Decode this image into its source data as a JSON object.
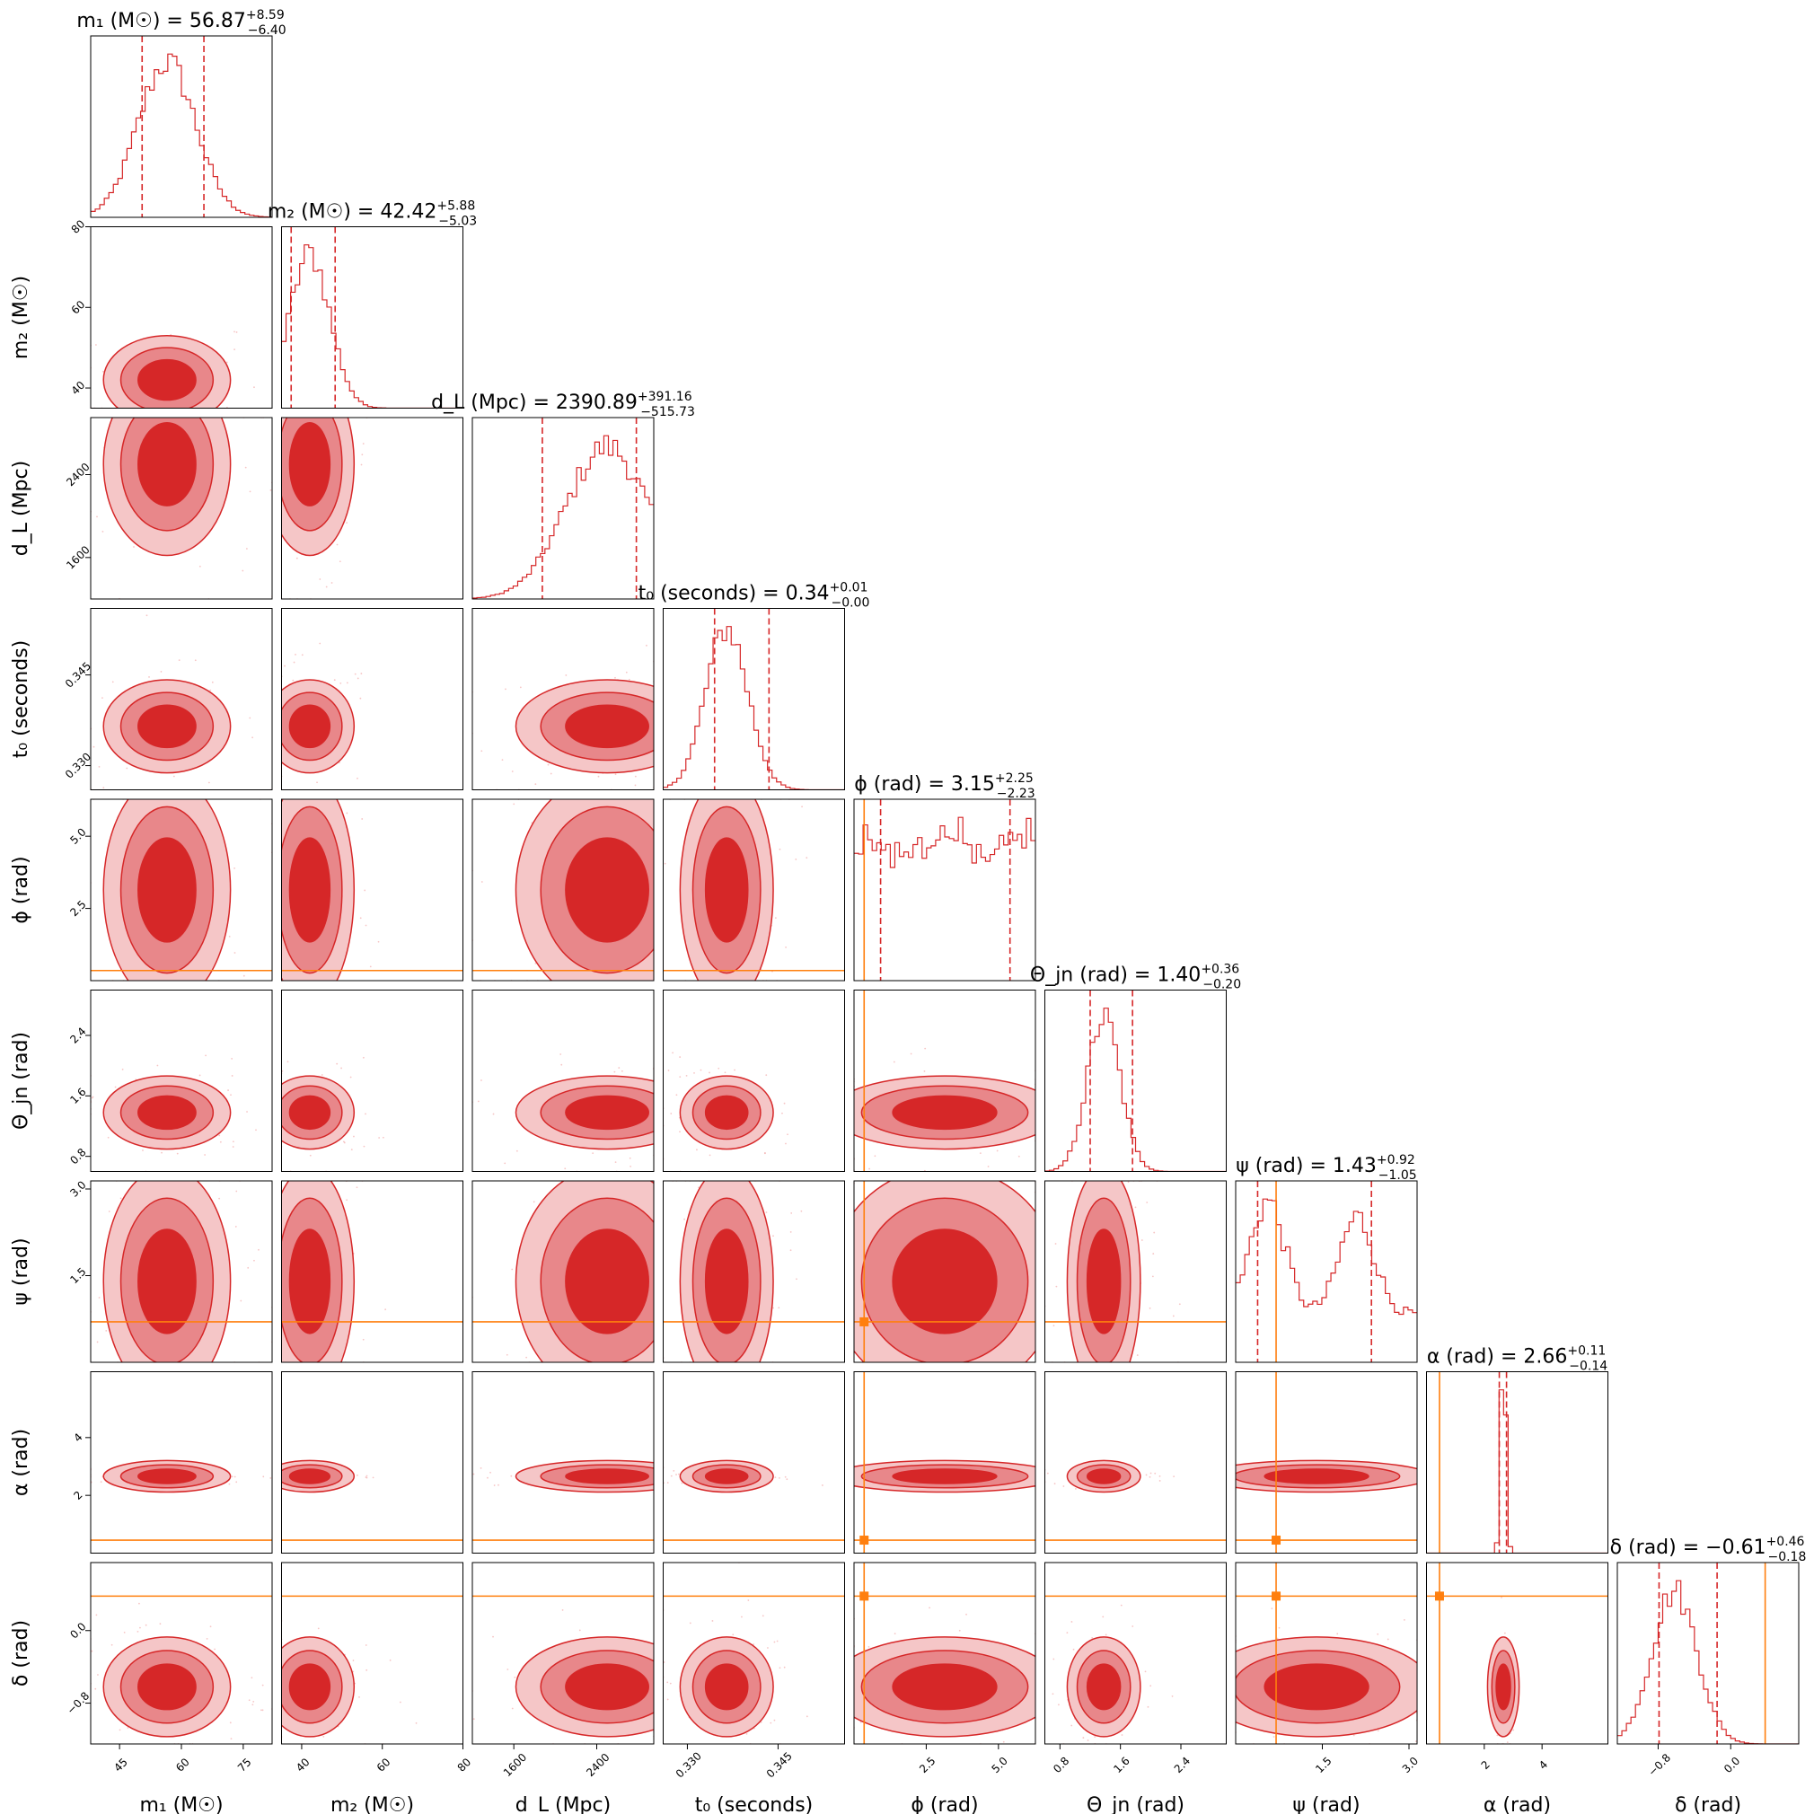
{
  "chart_data": {
    "type": "corner",
    "colors": {
      "posterior": "#d62728",
      "contour_inner": "#d62728",
      "contour_mid": "#e8878a",
      "contour_outer": "#f5c6c7",
      "truth": "#ff7f0e",
      "axes": "#000000",
      "scatter": "#f0a0a0"
    },
    "parameters": [
      {
        "key": "m1",
        "label": "m₁ (M☉)",
        "range": [
          38,
          82
        ],
        "ticks": [
          {
            "v": 45,
            "t": "45"
          },
          {
            "v": 60,
            "t": "60"
          },
          {
            "v": 75,
            "t": "75"
          }
        ],
        "title_main": "m₁ (M☉) = 56.87",
        "title_sup": "+8.59",
        "title_sub": "−6.40",
        "median": 56.87,
        "q_low": 50.47,
        "q_high": 65.46,
        "truth": null,
        "mu": 56.5,
        "sig": 7.0
      },
      {
        "key": "m2",
        "label": "m₂ (M☉)",
        "range": [
          35,
          80
        ],
        "ticks": [
          {
            "v": 40,
            "t": "40"
          },
          {
            "v": 60,
            "t": "60"
          },
          {
            "v": 80,
            "t": "80"
          }
        ],
        "title_main": "m₂ (M☉) = 42.42",
        "title_sup": "+5.88",
        "title_sub": "−5.03",
        "median": 42.42,
        "q_low": 37.39,
        "q_high": 48.3,
        "truth": null,
        "mu": 42.0,
        "sig": 5.0
      },
      {
        "key": "dL",
        "label": "d_L (Mpc)",
        "range": [
          1200,
          2950
        ],
        "ticks": [
          {
            "v": 1600,
            "t": "1600"
          },
          {
            "v": 2400,
            "t": "2400"
          }
        ],
        "title_main": "d_L (Mpc) = 2390.89",
        "title_sup": "+391.16",
        "title_sub": "−515.73",
        "median": 2390.89,
        "q_low": 1875.16,
        "q_high": 2782.05,
        "truth": null,
        "mu": 2500,
        "sig": 400
      },
      {
        "key": "t0",
        "label": "t₀ (seconds)",
        "range": [
          0.326,
          0.356
        ],
        "ticks": [
          {
            "v": 0.33,
            "t": "0.330"
          },
          {
            "v": 0.345,
            "t": "0.345"
          }
        ],
        "title_main": "t₀ (seconds) = 0.34",
        "title_sup": "+0.01",
        "title_sub": "−0.00",
        "median": 0.34,
        "q_low": 0.3345,
        "q_high": 0.3435,
        "truth": null,
        "mu": 0.3365,
        "sig": 0.0035
      },
      {
        "key": "phi",
        "label": "ϕ (rad)",
        "range": [
          0,
          6.28
        ],
        "ticks": [
          {
            "v": 2.5,
            "t": "2.5"
          },
          {
            "v": 5.0,
            "t": "5.0"
          }
        ],
        "title_main": "ϕ (rad) = 3.15",
        "title_sup": "+2.25",
        "title_sub": "−2.23",
        "median": 3.15,
        "q_low": 0.92,
        "q_high": 5.4,
        "truth": 0.35,
        "mu": 3.14,
        "sig": 1.8
      },
      {
        "key": "theta",
        "label": "Θ_jn (rad)",
        "range": [
          0.6,
          3.0
        ],
        "ticks": [
          {
            "v": 0.8,
            "t": "0.8"
          },
          {
            "v": 1.6,
            "t": "1.6"
          },
          {
            "v": 2.4,
            "t": "2.4"
          }
        ],
        "title_main": "Θ_jn (rad) = 1.40",
        "title_sup": "+0.36",
        "title_sub": "−0.20",
        "median": 1.4,
        "q_low": 1.2,
        "q_high": 1.76,
        "truth": null,
        "mu": 1.38,
        "sig": 0.22
      },
      {
        "key": "psi",
        "label": "ψ (rad)",
        "range": [
          0,
          3.14
        ],
        "ticks": [
          {
            "v": 1.5,
            "t": "1.5"
          },
          {
            "v": 3.0,
            "t": "3.0"
          }
        ],
        "title_main": "ψ (rad) = 1.43",
        "title_sup": "+0.92",
        "title_sub": "−1.05",
        "median": 1.43,
        "q_low": 0.38,
        "q_high": 2.35,
        "truth": 0.7,
        "mu": 1.4,
        "sig": 0.9
      },
      {
        "key": "alpha",
        "label": "α (rad)",
        "range": [
          0,
          6.28
        ],
        "ticks": [
          {
            "v": 2,
            "t": "2"
          },
          {
            "v": 4,
            "t": "4"
          }
        ],
        "title_main": "α (rad) = 2.66",
        "title_sup": "+0.11",
        "title_sub": "−0.14",
        "median": 2.66,
        "q_low": 2.52,
        "q_high": 2.77,
        "truth": 0.45,
        "mu": 2.66,
        "sig": 0.09
      },
      {
        "key": "delta",
        "label": "δ (rad)",
        "range": [
          -1.25,
          0.75
        ],
        "ticks": [
          {
            "v": -0.8,
            "t": "−0.8"
          },
          {
            "v": 0.0,
            "t": "0.0"
          }
        ],
        "title_main": "δ (rad) = −0.61",
        "title_sup": "+0.46",
        "title_sub": "−0.18",
        "median": -0.61,
        "q_low": -0.79,
        "q_high": -0.15,
        "truth": 0.38,
        "mu": -0.62,
        "sig": 0.25
      }
    ]
  }
}
